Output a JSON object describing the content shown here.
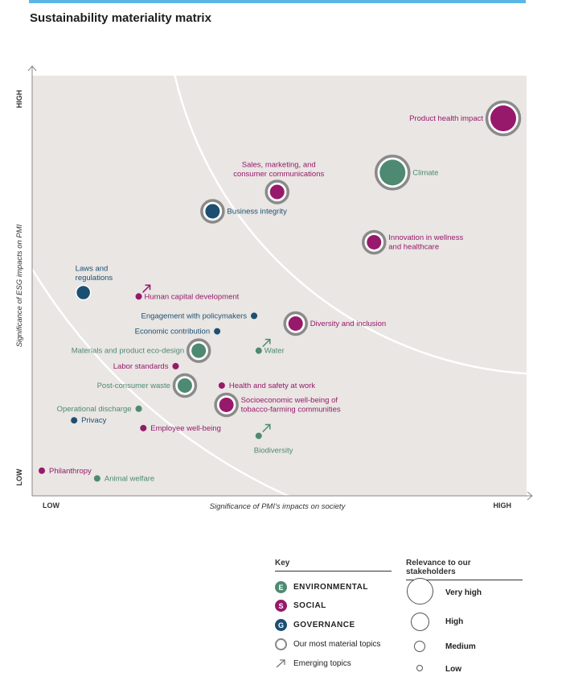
{
  "title": "Sustainability materiality matrix",
  "chart_data": {
    "type": "scatter",
    "xlabel": "Significance of PMI's impacts on society",
    "ylabel": "Significance of ESG impacts on PMI",
    "x_low": "LOW",
    "x_high": "HIGH",
    "y_low": "LOW",
    "y_high": "HIGH",
    "xlim": [
      0,
      100
    ],
    "ylim": [
      0,
      100
    ],
    "points": [
      {
        "label": "Product health impact",
        "x": 100,
        "y": 95,
        "category": "S",
        "size": "very_high",
        "material": true,
        "emerging": false,
        "side": "left"
      },
      {
        "label": "Climate",
        "x": 76,
        "y": 81,
        "category": "E",
        "size": "very_high",
        "material": true,
        "emerging": false,
        "side": "right"
      },
      {
        "label": "Sales, marketing, and consumer communications",
        "x": 51,
        "y": 76,
        "category": "S",
        "size": "medium",
        "material": true,
        "emerging": false,
        "side": "above"
      },
      {
        "label": "Business integrity",
        "x": 37,
        "y": 71,
        "category": "G",
        "size": "medium",
        "material": true,
        "emerging": false,
        "side": "right"
      },
      {
        "label": "Innovation in wellness and healthcare",
        "x": 72,
        "y": 63,
        "category": "S",
        "size": "medium",
        "material": true,
        "emerging": false,
        "side": "right"
      },
      {
        "label": "Laws and regulations",
        "x": 9,
        "y": 50,
        "category": "G",
        "size": "medium",
        "material": false,
        "emerging": false,
        "side": "above"
      },
      {
        "label": "Human capital development",
        "x": 21,
        "y": 49,
        "category": "S",
        "size": "low",
        "material": false,
        "emerging": true,
        "side": "right"
      },
      {
        "label": "Engagement with policymakers",
        "x": 46,
        "y": 44,
        "category": "G",
        "size": "low",
        "material": false,
        "emerging": false,
        "side": "left"
      },
      {
        "label": "Economic contribution",
        "x": 38,
        "y": 40,
        "category": "G",
        "size": "low",
        "material": false,
        "emerging": false,
        "side": "left"
      },
      {
        "label": "Diversity and inclusion",
        "x": 55,
        "y": 42,
        "category": "S",
        "size": "medium",
        "material": true,
        "emerging": false,
        "side": "right"
      },
      {
        "label": "Materials and product eco-design",
        "x": 34,
        "y": 35,
        "category": "E",
        "size": "medium",
        "material": true,
        "emerging": false,
        "side": "left"
      },
      {
        "label": "Water",
        "x": 47,
        "y": 35,
        "category": "E",
        "size": "low",
        "material": false,
        "emerging": true,
        "side": "right"
      },
      {
        "label": "Labor standards",
        "x": 29,
        "y": 31,
        "category": "S",
        "size": "low",
        "material": false,
        "emerging": false,
        "side": "left"
      },
      {
        "label": "Post-consumer waste",
        "x": 31,
        "y": 26,
        "category": "E",
        "size": "medium",
        "material": true,
        "emerging": false,
        "side": "left"
      },
      {
        "label": "Health and safety at work",
        "x": 39,
        "y": 26,
        "category": "S",
        "size": "low",
        "material": false,
        "emerging": false,
        "side": "right"
      },
      {
        "label": "Socioeconomic well-being of tobacco-farming communities",
        "x": 40,
        "y": 21,
        "category": "S",
        "size": "medium",
        "material": true,
        "emerging": false,
        "side": "right"
      },
      {
        "label": "Operational discharge",
        "x": 21,
        "y": 20,
        "category": "E",
        "size": "low",
        "material": false,
        "emerging": false,
        "side": "left"
      },
      {
        "label": "Privacy",
        "x": 7,
        "y": 17,
        "category": "G",
        "size": "low",
        "material": false,
        "emerging": false,
        "side": "right"
      },
      {
        "label": "Employee well-being",
        "x": 22,
        "y": 15,
        "category": "S",
        "size": "low",
        "material": false,
        "emerging": false,
        "side": "right"
      },
      {
        "label": "Biodiversity",
        "x": 47,
        "y": 13,
        "category": "E",
        "size": "low",
        "material": false,
        "emerging": true,
        "side": "below"
      },
      {
        "label": "Philanthropy",
        "x": 0,
        "y": 4,
        "category": "S",
        "size": "low",
        "material": false,
        "emerging": false,
        "side": "right"
      },
      {
        "label": "Animal welfare",
        "x": 12,
        "y": 2,
        "category": "E",
        "size": "low",
        "material": false,
        "emerging": false,
        "side": "right"
      }
    ]
  },
  "colors": {
    "E": "#4e8a72",
    "S": "#97196b",
    "G": "#1c4f72",
    "ring": "#8a8a8a",
    "plot_bg": "#e9e6e3"
  },
  "legend": {
    "key_title": "Key",
    "relevance_title": "Relevance to our stakeholders",
    "env_letter": "E",
    "env_label": "ENVIRONMENTAL",
    "soc_letter": "S",
    "soc_label": "SOCIAL",
    "gov_letter": "G",
    "gov_label": "GOVERNANCE",
    "material_label": "Our most material topics",
    "emerging_label": "Emerging topics",
    "sizes": [
      "Very high",
      "High",
      "Medium",
      "Low"
    ]
  }
}
